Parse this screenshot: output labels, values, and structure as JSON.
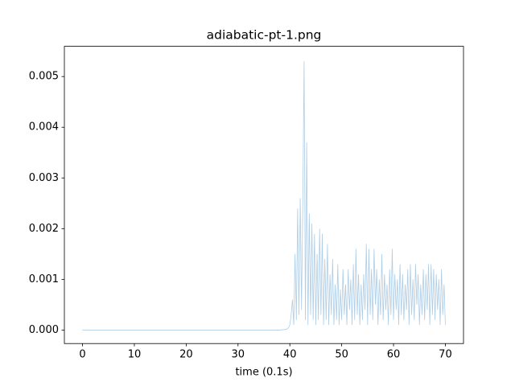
{
  "chart_data": {
    "type": "line",
    "title": "adiabatic-pt-1.png",
    "x_label": "time (0.1s)",
    "x": [
      0,
      10,
      20,
      30,
      38,
      39,
      39.5,
      39.75,
      40,
      40.25,
      40.5,
      40.75,
      41,
      41.25,
      41.5,
      41.75,
      42,
      42.25,
      42.5,
      42.75,
      43,
      43.25,
      43.5,
      43.75,
      44,
      44.25,
      44.5,
      44.75,
      45,
      45.25,
      45.5,
      45.75,
      46,
      46.25,
      46.5,
      46.75,
      47,
      47.25,
      47.5,
      47.75,
      48,
      48.25,
      48.5,
      48.75,
      49,
      49.25,
      49.5,
      49.75,
      50,
      50.25,
      50.5,
      50.75,
      51,
      51.25,
      51.5,
      51.75,
      52,
      52.25,
      52.5,
      52.75,
      53,
      53.25,
      53.5,
      53.75,
      54,
      54.25,
      54.5,
      54.75,
      55,
      55.25,
      55.5,
      55.75,
      56,
      56.25,
      56.5,
      56.75,
      57,
      57.25,
      57.5,
      57.75,
      58,
      58.25,
      58.5,
      58.75,
      59,
      59.25,
      59.5,
      59.75,
      60,
      60.25,
      60.5,
      60.75,
      61,
      61.25,
      61.5,
      61.75,
      62,
      62.25,
      62.5,
      62.75,
      63,
      63.25,
      63.5,
      63.75,
      64,
      64.25,
      64.5,
      64.75,
      65,
      65.25,
      65.5,
      65.75,
      66,
      66.25,
      66.5,
      66.75,
      67,
      67.25,
      67.5,
      67.75,
      68,
      68.25,
      68.5,
      68.75,
      69,
      69.25,
      69.5,
      69.75,
      70
    ],
    "values": [
      0,
      0,
      0,
      0,
      0,
      1e-05,
      2e-05,
      5e-05,
      0.0001,
      0.0003,
      0.0006,
      0.0001,
      0.0015,
      0.0002,
      0.0024,
      0.0003,
      0.0026,
      0.0004,
      0.0025,
      0.0053,
      0.0002,
      0.0037,
      0.0001,
      0.0023,
      0.0003,
      0.0021,
      0.0002,
      0.0019,
      0.0001,
      0.0015,
      0.0002,
      0.002,
      0.0003,
      0.0019,
      0.0001,
      0.0014,
      0.0002,
      0.0017,
      0.0001,
      0.0011,
      0.0003,
      0.0014,
      0.0001,
      0.0009,
      0.0002,
      0.0013,
      0.0001,
      0.0008,
      0.0002,
      0.0012,
      0.0003,
      0.0009,
      0.0001,
      0.0012,
      0.0004,
      0.001,
      0.0001,
      0.0013,
      0.0002,
      0.0016,
      0.0003,
      0.0011,
      0.0001,
      0.0009,
      0.0002,
      0.0011,
      0.0004,
      0.0017,
      0.0001,
      0.0016,
      0.0003,
      0.0012,
      0.0002,
      0.0016,
      0.0005,
      0.0012,
      0.0001,
      0.001,
      0.0003,
      0.0015,
      0.0002,
      0.0011,
      0.0004,
      0.0009,
      0.0001,
      0.0012,
      0.0003,
      0.0016,
      0.0002,
      0.0011,
      0.0004,
      0.001,
      0.0001,
      0.0013,
      0.0003,
      0.0011,
      0.0002,
      0.0009,
      0.0004,
      0.0012,
      0.0001,
      0.0013,
      0.0003,
      0.001,
      0.0002,
      0.0013,
      0.0005,
      0.0011,
      0.0001,
      0.0009,
      0.0003,
      0.0012,
      0.0002,
      0.0011,
      0.0004,
      0.0013,
      0.0001,
      0.0013,
      0.0003,
      0.0012,
      0.0002,
      0.0011,
      0.0004,
      0.001,
      0.0001,
      0.0012,
      0.0003,
      0.0009,
      0.0001
    ],
    "color": "#aecde6",
    "xlim": [
      -3.5,
      73.5
    ],
    "xticks": [
      0,
      10,
      20,
      30,
      40,
      50,
      60,
      70
    ],
    "ylim": [
      -0.000266,
      0.005596
    ],
    "yticks": [
      {
        "value": 0,
        "label": "0.000"
      },
      {
        "value": 0.001,
        "label": "0.001"
      },
      {
        "value": 0.002,
        "label": "0.002"
      },
      {
        "value": 0.003,
        "label": "0.003"
      },
      {
        "value": 0.004,
        "label": "0.004"
      },
      {
        "value": 0.005,
        "label": "0.005"
      }
    ],
    "grid": false
  }
}
